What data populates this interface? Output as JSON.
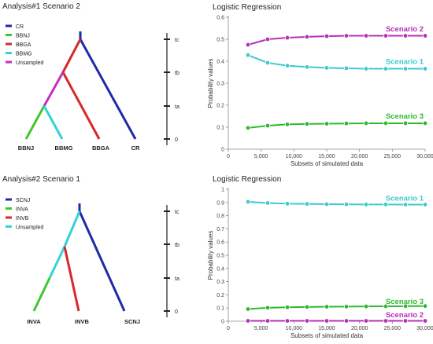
{
  "trees": [
    {
      "title": "Analysis#1 Scenario 2",
      "legend": [
        {
          "label": "CR",
          "color": "#1f2aa6"
        },
        {
          "label": "BBNJ",
          "color": "#3fc82f"
        },
        {
          "label": "BBGA",
          "color": "#d42a2a"
        },
        {
          "label": "BBMG",
          "color": "#2fd4d8"
        },
        {
          "label": "Unsampled",
          "color": "#c22fc8"
        }
      ],
      "leaves": [
        "BBNJ",
        "BBMG",
        "BBGA",
        "CR"
      ],
      "time_labels": [
        "tc",
        "tb",
        "ta",
        "0"
      ]
    },
    {
      "title": "Analysis#2 Scenario 1",
      "legend": [
        {
          "label": "SCNJ",
          "color": "#1f2aa6"
        },
        {
          "label": "INVA",
          "color": "#3fc82f"
        },
        {
          "label": "INVB",
          "color": "#d42a2a"
        },
        {
          "label": "Unsampled",
          "color": "#2fd4d8"
        }
      ],
      "leaves": [
        "INVA",
        "INVB",
        "SCNJ"
      ],
      "time_labels": [
        "tc",
        "tb",
        "ta",
        "0"
      ]
    }
  ],
  "chart_data": [
    {
      "type": "line",
      "title": "Logistic Regression",
      "xlabel": "Subsets of simulated data",
      "ylabel": "Probability values",
      "xlim": [
        0,
        30000
      ],
      "ylim": [
        0,
        0.6
      ],
      "xticks": [
        0,
        5000,
        10000,
        15000,
        20000,
        25000,
        30000
      ],
      "xtick_labels": [
        "0",
        "5,000",
        "10,000",
        "15,000",
        "20,000",
        "25,000",
        "30,000"
      ],
      "yticks": [
        0,
        0.1,
        0.2,
        0.3,
        0.4,
        0.5,
        0.6
      ],
      "ytick_labels": [
        "0",
        "0.1",
        "0.2",
        "0.3",
        "0.4",
        "0.5",
        "0.6"
      ],
      "grid": false,
      "x": [
        3000,
        6000,
        9000,
        12000,
        15000,
        18000,
        21000,
        24000,
        27000,
        30000
      ],
      "series": [
        {
          "name": "Scenario 2",
          "color": "#b530b8",
          "values": [
            0.475,
            0.5,
            0.507,
            0.511,
            0.514,
            0.516,
            0.516,
            0.516,
            0.516,
            0.516
          ]
        },
        {
          "name": "Scenario 1",
          "color": "#3cc9cf",
          "values": [
            0.428,
            0.393,
            0.38,
            0.374,
            0.37,
            0.368,
            0.366,
            0.366,
            0.366,
            0.366
          ]
        },
        {
          "name": "Scenario 3",
          "color": "#2fb82f",
          "values": [
            0.097,
            0.107,
            0.113,
            0.115,
            0.116,
            0.117,
            0.118,
            0.118,
            0.118,
            0.118
          ]
        }
      ]
    },
    {
      "type": "line",
      "title": "Logistic Regression",
      "xlabel": "Subsets of simulated data",
      "ylabel": "Probability values",
      "xlim": [
        0,
        30000
      ],
      "ylim": [
        0,
        1
      ],
      "xticks": [
        0,
        5000,
        10000,
        15000,
        20000,
        25000,
        30000
      ],
      "xtick_labels": [
        "0",
        "5,000",
        "10,000",
        "15,000",
        "20,000",
        "25,000",
        "30,000"
      ],
      "yticks": [
        0,
        0.1,
        0.2,
        0.3,
        0.4,
        0.5,
        0.6,
        0.7,
        0.8,
        0.9,
        1
      ],
      "ytick_labels": [
        "0",
        "0.1",
        "0.2",
        "0.3",
        "0.4",
        "0.5",
        "0.6",
        "0.7",
        "0.8",
        "0.9",
        "1"
      ],
      "grid": false,
      "x": [
        3000,
        6000,
        9000,
        12000,
        15000,
        18000,
        21000,
        24000,
        27000,
        30000
      ],
      "series": [
        {
          "name": "Scenario 1",
          "color": "#3cc9cf",
          "values": [
            0.905,
            0.896,
            0.891,
            0.889,
            0.887,
            0.886,
            0.885,
            0.885,
            0.884,
            0.884
          ]
        },
        {
          "name": "Scenario 3",
          "color": "#2fb82f",
          "values": [
            0.092,
            0.102,
            0.106,
            0.108,
            0.11,
            0.111,
            0.112,
            0.113,
            0.114,
            0.115
          ]
        },
        {
          "name": "Scenario 2",
          "color": "#b530b8",
          "values": [
            0.003,
            0.003,
            0.003,
            0.003,
            0.003,
            0.003,
            0.003,
            0.003,
            0.003,
            0.003
          ]
        }
      ]
    }
  ]
}
